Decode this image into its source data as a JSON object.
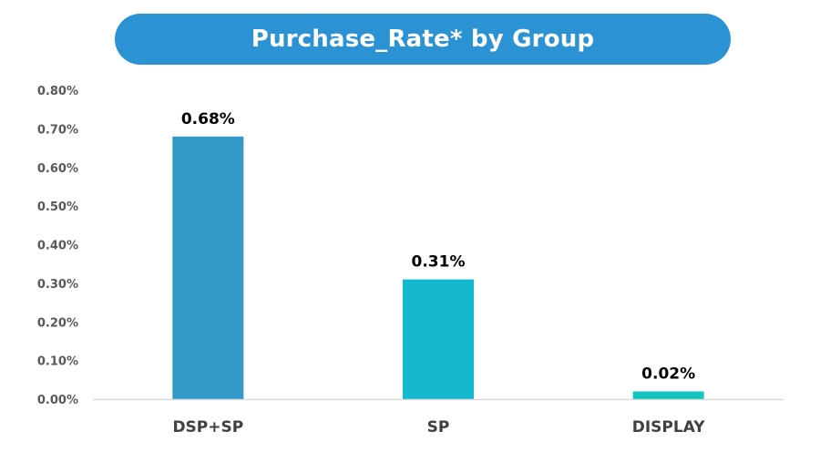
{
  "chart_data": {
    "type": "bar",
    "title": "Purchase_Rate* by Group",
    "categories": [
      "DSP+SP",
      "SP",
      "DISPLAY"
    ],
    "values": [
      0.68,
      0.31,
      0.02
    ],
    "data_labels": [
      "0.68%",
      "0.31%",
      "0.02%"
    ],
    "bar_colors": [
      "#3399c9",
      "#14b8cf",
      "#13c4c0"
    ],
    "ylim": [
      0,
      0.8
    ],
    "yticks": [
      "0.00%",
      "0.10%",
      "0.20%",
      "0.30%",
      "0.40%",
      "0.50%",
      "0.60%",
      "0.70%",
      "0.80%"
    ],
    "xlabel": "",
    "ylabel": "",
    "grid": false,
    "legend": "none"
  },
  "colors": {
    "title_background": "#2b93d4",
    "axis_line": "#d9d9d9"
  }
}
